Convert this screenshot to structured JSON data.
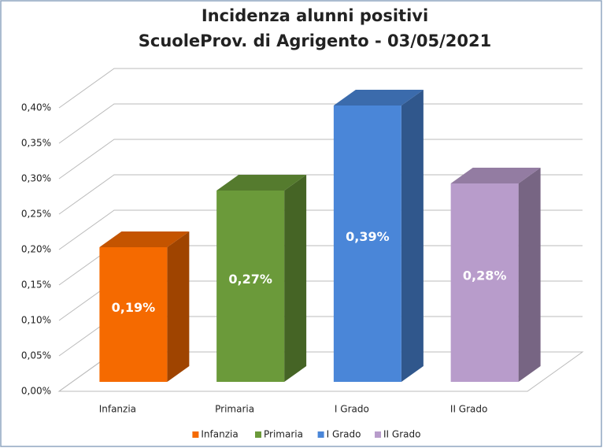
{
  "chart_data": {
    "type": "bar3d",
    "title": "Incidenza alunni positivi",
    "subtitle": "ScuoleProv. di Agrigento - 03/05/2021",
    "categories": [
      "Infanzia",
      "Primaria",
      "I Grado",
      "II Grado"
    ],
    "values": [
      0.19,
      0.27,
      0.39,
      0.28
    ],
    "value_labels": [
      "0,19%",
      "0,27%",
      "0,39%",
      "0,28%"
    ],
    "colors": [
      "#f56a00",
      "#6b9a3a",
      "#4a86d8",
      "#b89ccb"
    ],
    "ylim": [
      0,
      0.4
    ],
    "yticks": [
      {
        "value": 0,
        "label": "0,00%"
      },
      {
        "value": 0.05,
        "label": "0,05%"
      },
      {
        "value": 0.1,
        "label": "0,10%"
      },
      {
        "value": 0.15,
        "label": "0,15%"
      },
      {
        "value": 0.2,
        "label": "0,20%"
      },
      {
        "value": 0.25,
        "label": "0,25%"
      },
      {
        "value": 0.3,
        "label": "0,30%"
      },
      {
        "value": 0.35,
        "label": "0,35%"
      },
      {
        "value": 0.4,
        "label": "0,40%"
      }
    ],
    "grid": true,
    "legend": "bottom"
  }
}
